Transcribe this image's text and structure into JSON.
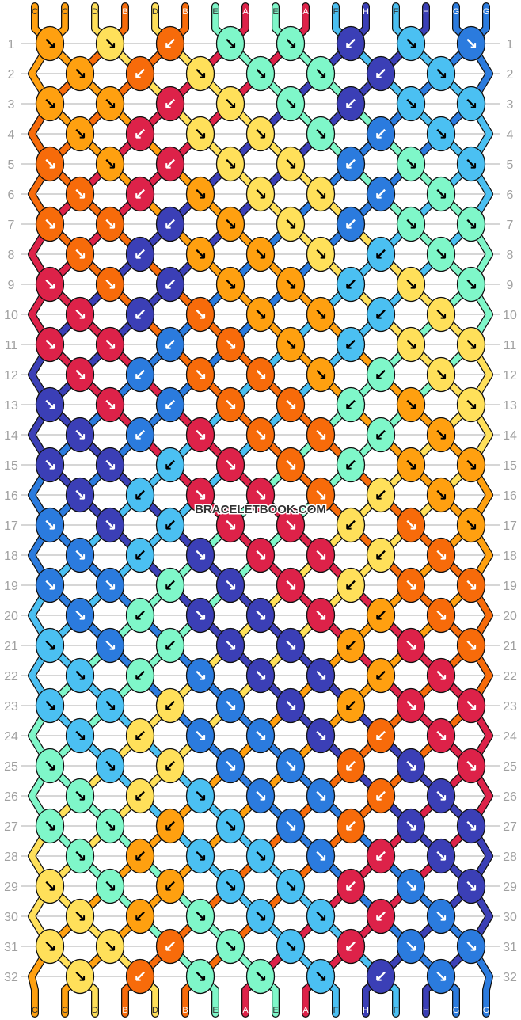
{
  "colors": {
    "A": "#DD2249",
    "B": "#F76B0A",
    "C": "#FFA010",
    "D": "#FFE05A",
    "E": "#7FF7C9",
    "F": "#4BC0F2",
    "G": "#2B7BDE",
    "H": "#3B3FB6"
  },
  "dark_colors": [
    "A",
    "B",
    "G",
    "H"
  ],
  "top_strings": [
    "C",
    "C",
    "D",
    "B",
    "D",
    "B",
    "E",
    "A",
    "E",
    "A",
    "F",
    "H",
    "F",
    "H",
    "G",
    "G"
  ],
  "bottom_strings": [
    "C",
    "C",
    "D",
    "B",
    "D",
    "B",
    "E",
    "A",
    "E",
    "A",
    "F",
    "H",
    "F",
    "H",
    "G",
    "G"
  ],
  "row_labels": [
    "1",
    "2",
    "3",
    "4",
    "5",
    "6",
    "7",
    "8",
    "9",
    "10",
    "11",
    "12",
    "13",
    "14",
    "15",
    "16",
    "17",
    "18",
    "19",
    "20",
    "21",
    "22",
    "23",
    "24",
    "25",
    "26",
    "27",
    "28",
    "29",
    "30",
    "31",
    "32"
  ],
  "watermark": "BRACELETBOOK.COM",
  "knot_directions": {
    "R": "↘",
    "L": "↙"
  },
  "rows": [
    "CR DR BL ER ER HL FR GR",
    "CR BL DR ER ER HL FR",
    "CR CR AL DR ER HL FR FR",
    "CR AL DR DR ER GL FR",
    "BR CR AL DR DR GL ER FR",
    "BR AL CR DR DR GL ER",
    "BR BR HL CR DR GL ER ER",
    "BR HL CR CR DR FL ER",
    "AR BR HL CR CR FL DR ER",
    "AR HL BR CR CR FL DR",
    "AR AR GL BR CR FL DR DR",
    "AR GL BR BR CR EL DR",
    "HR AR GL BR BR EL CR DR",
    "HR GL AR BR BR EL CR",
    "HR HR FL AR BR EL CR CR",
    "HR FL AR AR BR DL CR",
    "GR HR FL AR AR DL BR CR",
    "GR FL HR AR AR DL BR",
    "GR GR EL HR AR DL BR BR",
    "GR EL HR HR AR CL BR",
    "FR GR EL HR HR CL AR BR",
    "FR EL GR HR HR CL AR",
    "FR FR DL GR HR CL AR AR",
    "FR DL GR GR HR BL AR",
    "ER FR DL GR GR BL HR AR",
    "ER DL FR GR GR BL HR",
    "ER ER CL FR GR BL HR HR",
    "ER CL FR FR GR AL HR",
    "DR ER CL FR FR AL GR HR",
    "DR CL ER FR FR AL GR",
    "DR DR BL ER FR AL GR GR",
    "DR BL ER ER FR HL GR"
  ]
}
